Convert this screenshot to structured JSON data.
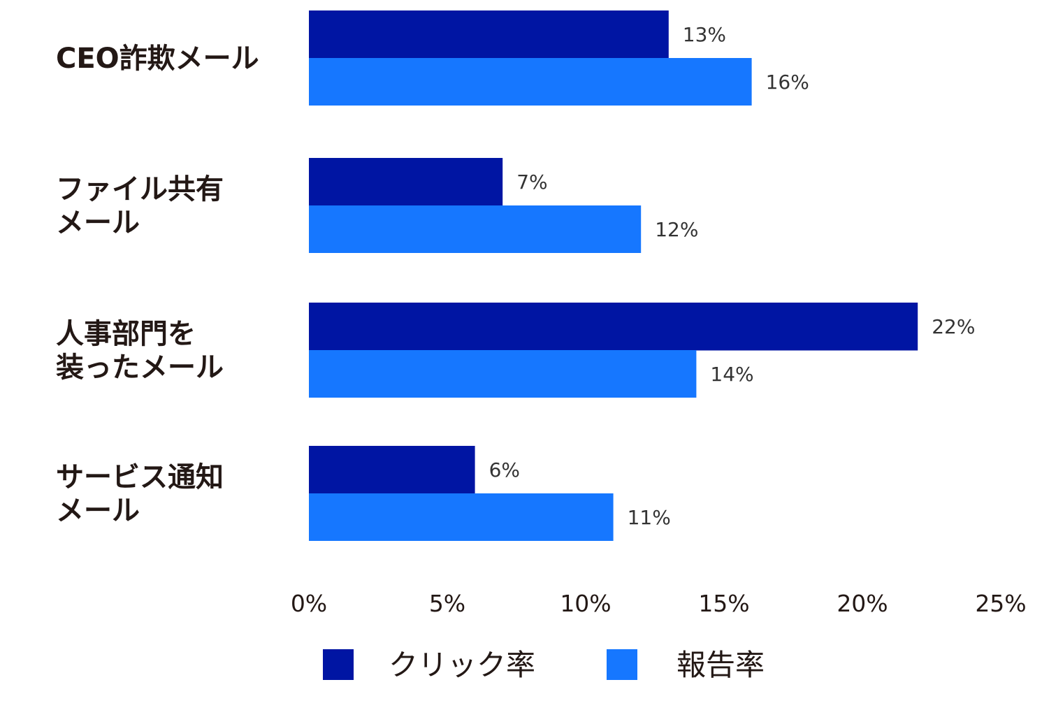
{
  "chart_data": {
    "type": "bar",
    "orientation": "horizontal",
    "categories": [
      [
        "CEO詐欺メール"
      ],
      [
        "ファイル共有",
        "メール"
      ],
      [
        "人事部門を",
        "装ったメール"
      ],
      [
        "サービス通知",
        "メール"
      ]
    ],
    "series": [
      {
        "name": "クリック率",
        "color": "#0015A3",
        "values": [
          13,
          7,
          22,
          6
        ],
        "labels": [
          "13%",
          "7%",
          "22%",
          "6%"
        ]
      },
      {
        "name": "報告率",
        "color": "#1677FF",
        "values": [
          16,
          12,
          14,
          11
        ],
        "labels": [
          "16%",
          "12%",
          "14%",
          "11%"
        ]
      }
    ],
    "xlim": [
      0,
      25
    ],
    "xticks": [
      0,
      5,
      10,
      15,
      20,
      25
    ],
    "xtick_labels": [
      "0%",
      "5%",
      "10%",
      "15%",
      "20%",
      "25%"
    ],
    "grid": false,
    "legend": "bottom"
  }
}
